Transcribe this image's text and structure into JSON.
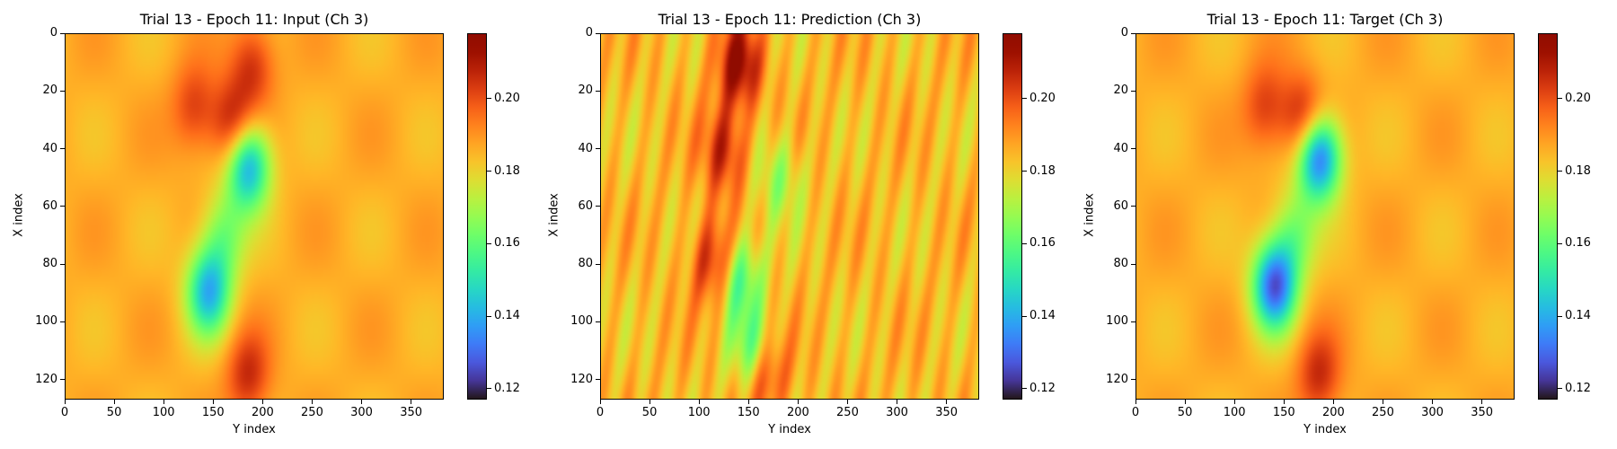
{
  "chart_data": [
    {
      "type": "heatmap",
      "title": "Trial 13 - Epoch 11: Input (Ch 3)",
      "xlabel": "Y index",
      "ylabel": "X index",
      "x_ticks": [
        0,
        50,
        100,
        150,
        200,
        250,
        300,
        350
      ],
      "y_ticks": [
        0,
        20,
        40,
        60,
        80,
        100,
        120
      ],
      "xlim": [
        0,
        383
      ],
      "ylim": [
        127,
        0
      ],
      "colorbar": {
        "ticks": [
          0.12,
          0.14,
          0.16,
          0.18,
          0.2
        ],
        "range": [
          0.117,
          0.218
        ],
        "colormap": "turbo"
      },
      "background_value": 0.186,
      "features": [
        {
          "x": 170,
          "y": 32,
          "value": 0.212
        },
        {
          "x": 190,
          "y": 10,
          "value": 0.205
        },
        {
          "x": 185,
          "y": 45,
          "value": 0.135
        },
        {
          "x": 145,
          "y": 90,
          "value": 0.142
        },
        {
          "x": 160,
          "y": 70,
          "value": 0.165
        },
        {
          "x": 185,
          "y": 120,
          "value": 0.206
        },
        {
          "x": 130,
          "y": 25,
          "value": 0.203
        }
      ]
    },
    {
      "type": "heatmap",
      "title": "Trial 13 - Epoch 11: Prediction (Ch 3)",
      "xlabel": "Y index",
      "ylabel": "X index",
      "x_ticks": [
        0,
        50,
        100,
        150,
        200,
        250,
        300,
        350
      ],
      "y_ticks": [
        0,
        20,
        40,
        60,
        80,
        100,
        120
      ],
      "xlim": [
        0,
        383
      ],
      "ylim": [
        127,
        0
      ],
      "colorbar": {
        "ticks": [
          0.12,
          0.14,
          0.16,
          0.18,
          0.2
        ],
        "range": [
          0.117,
          0.218
        ],
        "colormap": "turbo"
      },
      "background_value": 0.184,
      "features": [
        {
          "x": 140,
          "y": 10,
          "value": 0.214
        },
        {
          "x": 125,
          "y": 40,
          "value": 0.208
        },
        {
          "x": 115,
          "y": 80,
          "value": 0.21
        },
        {
          "x": 165,
          "y": 118,
          "value": 0.214
        },
        {
          "x": 180,
          "y": 50,
          "value": 0.168
        },
        {
          "x": 140,
          "y": 85,
          "value": 0.155
        },
        {
          "x": 155,
          "y": 112,
          "value": 0.152
        }
      ]
    },
    {
      "type": "heatmap",
      "title": "Trial 13 - Epoch 11: Target (Ch 3)",
      "xlabel": "Y index",
      "ylabel": "X index",
      "x_ticks": [
        0,
        50,
        100,
        150,
        200,
        250,
        300,
        350
      ],
      "y_ticks": [
        0,
        20,
        40,
        60,
        80,
        100,
        120
      ],
      "xlim": [
        0,
        383
      ],
      "ylim": [
        127,
        0
      ],
      "colorbar": {
        "ticks": [
          0.12,
          0.14,
          0.16,
          0.18,
          0.2
        ],
        "range": [
          0.117,
          0.218
        ],
        "colormap": "turbo"
      },
      "background_value": 0.186,
      "features": [
        {
          "x": 170,
          "y": 30,
          "value": 0.213
        },
        {
          "x": 185,
          "y": 42,
          "value": 0.125
        },
        {
          "x": 140,
          "y": 88,
          "value": 0.128
        },
        {
          "x": 160,
          "y": 70,
          "value": 0.165
        },
        {
          "x": 185,
          "y": 120,
          "value": 0.206
        },
        {
          "x": 130,
          "y": 25,
          "value": 0.203
        }
      ]
    }
  ]
}
